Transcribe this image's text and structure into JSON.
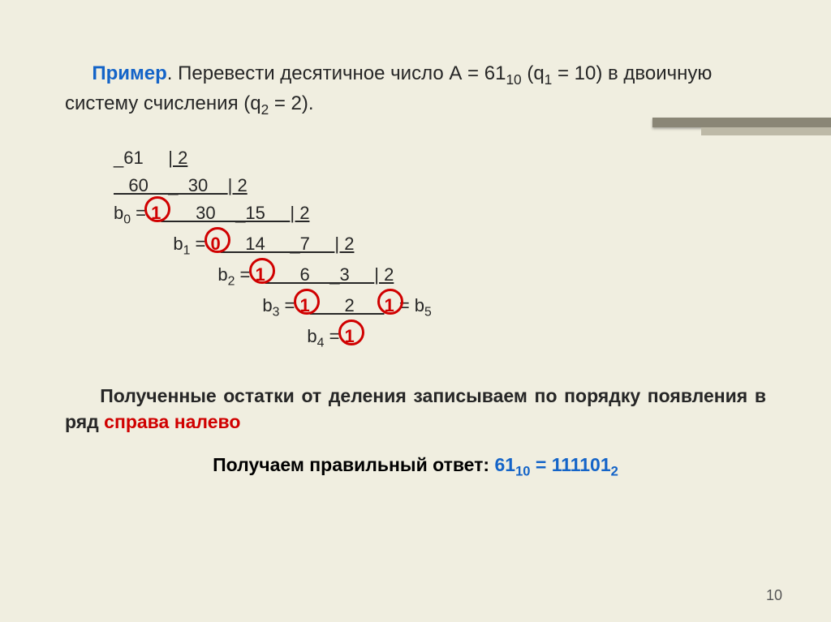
{
  "intro": {
    "keyword": "Пример",
    "text_before_first_sub": ". Перевести десятичное число А = 61",
    "sub1": "10",
    "text_q1": " (q",
    "sub_q1": "1",
    "text_q1_after": " = 10) в двоичную систему счисления (q",
    "sub_q2": "2",
    "text_end": " = 2)."
  },
  "division": {
    "line1_a": "_61     ",
    "line1_b": "| 2",
    "line2_a": "   60    _  30    ",
    "line2_b": "| 2",
    "line3_pre": "b",
    "line3_sub": "0",
    "line3_eq": " = ",
    "line3_val": "1",
    "line3_after": "       30    _15     ",
    "line3_b": "| 2",
    "line4_sp": "            ",
    "line4_pre": "b",
    "line4_sub": "1",
    "line4_eq": " = ",
    "line4_val": "0",
    "line4_after": "     14     _7     ",
    "line4_b": "| 2",
    "line5_sp": "                     ",
    "line5_pre": "b",
    "line5_sub": "2",
    "line5_eq": " = ",
    "line5_val": "1",
    "line5_after": "       6    _3     ",
    "line5_b": "| 2",
    "line6_sp": "                              ",
    "line6_pre": "b",
    "line6_sub": "3",
    "line6_eq": " = ",
    "line6_val": "1",
    "line6_after": "       2      ",
    "line6_val2": "1",
    "line6_eq2": " = b",
    "line6_sub2": "5",
    "line7_sp": "                                       ",
    "line7_pre": "b",
    "line7_sub": "4",
    "line7_eq": " = ",
    "line7_val": "1"
  },
  "remainder": {
    "t1": "Полученные остатки от деления записываем по порядку появления в ряд ",
    "hl": "справа налево"
  },
  "answer": {
    "label": "Получаем правильный ответ: ",
    "lhs": "61",
    "lhs_sub": "10",
    "eq": " = ",
    "rhs": "111101",
    "rhs_sub": "2"
  },
  "pagenum": "10",
  "colors": {
    "background": "#f0eee0",
    "keyword": "#1464c8",
    "highlight": "#d00000",
    "bar_dark": "#8a8676",
    "bar_light": "#bdb9a7"
  }
}
